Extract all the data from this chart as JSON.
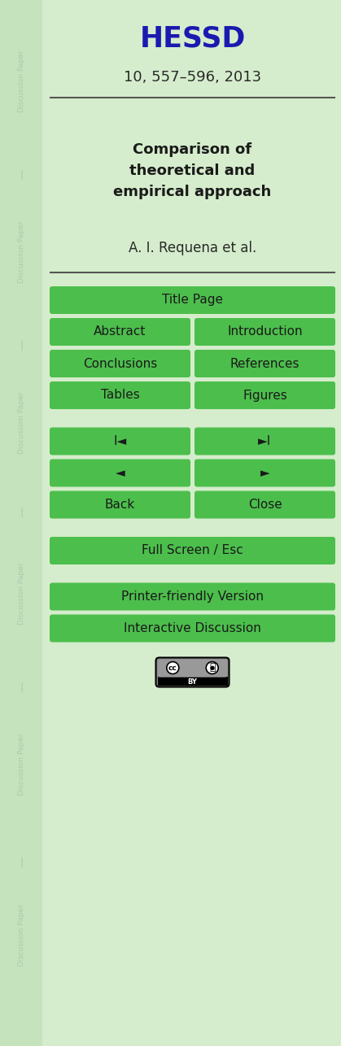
{
  "bg_color": "#d5edcc",
  "sidebar_color": "#c5e3bc",
  "title_text": "HESSD",
  "title_color": "#1a1ab0",
  "subtitle_text": "10, 557–596, 2013",
  "subtitle_color": "#2a2a2a",
  "divider_color": "#555555",
  "heading_text": "Comparison of\ntheoretical and\nempirical approach",
  "heading_color": "#1a1a1a",
  "author_text": "A. I. Requena et al.",
  "author_color": "#2a2a2a",
  "button_color": "#4cbe4c",
  "button_text_color": "#1a1a1a",
  "sidebar_text_color": "#b0c8b0",
  "fig_width": 4.19,
  "fig_height": 12.86,
  "dpi": 100
}
